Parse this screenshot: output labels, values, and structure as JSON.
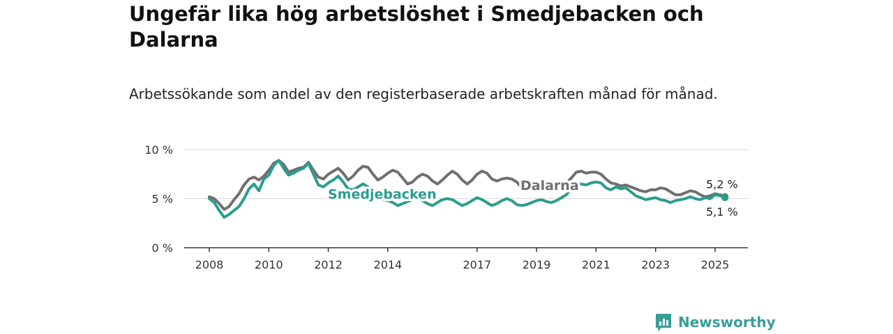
{
  "header": {
    "title": "Ungefär lika hög arbetslöshet i Smedjebacken och Dalarna",
    "subtitle": "Arbetssökande som andel av den registerbaserade arbetskraften månad för månad."
  },
  "brand": {
    "name": "Newsworthy",
    "icon": "newsworthy-logo-icon",
    "color": "#3a9d97"
  },
  "chart_data": {
    "type": "line",
    "ylim": [
      0,
      10
    ],
    "yticks": [
      {
        "value": 0,
        "label": "0 %"
      },
      {
        "value": 5,
        "label": "5 %"
      },
      {
        "value": 10,
        "label": "10 %"
      }
    ],
    "xticks": [
      "2008",
      "2010",
      "2012",
      "2014",
      "2017",
      "2019",
      "2021",
      "2023",
      "2025"
    ],
    "x_range": [
      "2008-01",
      "2025-06"
    ],
    "grid": true,
    "series": [
      {
        "name": "Dalarna",
        "color": "#6f6f6f",
        "label_value": "5,2 %",
        "points": [
          [
            "2008-01",
            5.2
          ],
          [
            "2008-03",
            5.0
          ],
          [
            "2008-05",
            4.5
          ],
          [
            "2008-07",
            3.9
          ],
          [
            "2008-09",
            4.2
          ],
          [
            "2008-11",
            4.9
          ],
          [
            "2009-01",
            5.5
          ],
          [
            "2009-03",
            6.4
          ],
          [
            "2009-05",
            7.0
          ],
          [
            "2009-07",
            7.2
          ],
          [
            "2009-09",
            6.9
          ],
          [
            "2009-11",
            7.3
          ],
          [
            "2010-01",
            7.9
          ],
          [
            "2010-03",
            8.6
          ],
          [
            "2010-05",
            8.9
          ],
          [
            "2010-07",
            8.5
          ],
          [
            "2010-09",
            7.7
          ],
          [
            "2010-11",
            7.9
          ],
          [
            "2011-01",
            8.1
          ],
          [
            "2011-03",
            8.2
          ],
          [
            "2011-05",
            8.7
          ],
          [
            "2011-07",
            7.9
          ],
          [
            "2011-09",
            7.2
          ],
          [
            "2011-11",
            7.0
          ],
          [
            "2012-01",
            7.5
          ],
          [
            "2012-03",
            7.8
          ],
          [
            "2012-05",
            8.1
          ],
          [
            "2012-07",
            7.6
          ],
          [
            "2012-09",
            6.9
          ],
          [
            "2012-11",
            7.3
          ],
          [
            "2013-01",
            7.9
          ],
          [
            "2013-03",
            8.3
          ],
          [
            "2013-05",
            8.2
          ],
          [
            "2013-07",
            7.5
          ],
          [
            "2013-09",
            6.9
          ],
          [
            "2013-11",
            7.2
          ],
          [
            "2014-01",
            7.6
          ],
          [
            "2014-03",
            7.9
          ],
          [
            "2014-05",
            7.7
          ],
          [
            "2014-07",
            7.1
          ],
          [
            "2014-09",
            6.5
          ],
          [
            "2014-11",
            6.7
          ],
          [
            "2015-01",
            7.2
          ],
          [
            "2015-03",
            7.5
          ],
          [
            "2015-05",
            7.3
          ],
          [
            "2015-07",
            6.8
          ],
          [
            "2015-09",
            6.5
          ],
          [
            "2015-11",
            6.9
          ],
          [
            "2016-01",
            7.4
          ],
          [
            "2016-03",
            7.8
          ],
          [
            "2016-05",
            7.5
          ],
          [
            "2016-07",
            6.9
          ],
          [
            "2016-09",
            6.5
          ],
          [
            "2016-11",
            6.9
          ],
          [
            "2017-01",
            7.5
          ],
          [
            "2017-03",
            7.8
          ],
          [
            "2017-05",
            7.6
          ],
          [
            "2017-07",
            7.0
          ],
          [
            "2017-09",
            6.8
          ],
          [
            "2017-11",
            7.0
          ],
          [
            "2018-01",
            7.1
          ],
          [
            "2018-03",
            7.0
          ],
          [
            "2018-05",
            6.7
          ],
          [
            "2018-07",
            6.1
          ],
          [
            "2018-09",
            6.0
          ],
          [
            "2018-11",
            6.2
          ],
          [
            "2019-01",
            6.5
          ],
          [
            "2019-03",
            6.6
          ],
          [
            "2019-05",
            6.4
          ],
          [
            "2019-07",
            6.1
          ],
          [
            "2019-09",
            6.1
          ],
          [
            "2019-11",
            6.3
          ],
          [
            "2020-01",
            6.6
          ],
          [
            "2020-03",
            7.1
          ],
          [
            "2020-05",
            7.7
          ],
          [
            "2020-07",
            7.8
          ],
          [
            "2020-09",
            7.6
          ],
          [
            "2020-11",
            7.7
          ],
          [
            "2021-01",
            7.7
          ],
          [
            "2021-03",
            7.5
          ],
          [
            "2021-05",
            7.0
          ],
          [
            "2021-07",
            6.6
          ],
          [
            "2021-09",
            6.5
          ],
          [
            "2021-11",
            6.3
          ],
          [
            "2022-01",
            6.4
          ],
          [
            "2022-03",
            6.2
          ],
          [
            "2022-05",
            6.0
          ],
          [
            "2022-07",
            5.8
          ],
          [
            "2022-09",
            5.7
          ],
          [
            "2022-11",
            5.9
          ],
          [
            "2023-01",
            5.9
          ],
          [
            "2023-03",
            6.1
          ],
          [
            "2023-05",
            6.0
          ],
          [
            "2023-07",
            5.7
          ],
          [
            "2023-09",
            5.4
          ],
          [
            "2023-11",
            5.4
          ],
          [
            "2024-01",
            5.6
          ],
          [
            "2024-03",
            5.8
          ],
          [
            "2024-05",
            5.7
          ],
          [
            "2024-07",
            5.4
          ],
          [
            "2024-09",
            5.2
          ],
          [
            "2024-11",
            5.3
          ],
          [
            "2025-01",
            5.5
          ],
          [
            "2025-03",
            5.4
          ],
          [
            "2025-05",
            5.2
          ]
        ]
      },
      {
        "name": "Smedjebacken",
        "color": "#2a9d8f",
        "label_value": "5,1 %",
        "points": [
          [
            "2008-01",
            5.0
          ],
          [
            "2008-03",
            4.6
          ],
          [
            "2008-05",
            3.8
          ],
          [
            "2008-07",
            3.1
          ],
          [
            "2008-09",
            3.4
          ],
          [
            "2008-11",
            3.8
          ],
          [
            "2009-01",
            4.2
          ],
          [
            "2009-03",
            5.0
          ],
          [
            "2009-05",
            6.0
          ],
          [
            "2009-07",
            6.5
          ],
          [
            "2009-09",
            5.8
          ],
          [
            "2009-11",
            7.0
          ],
          [
            "2010-01",
            7.4
          ],
          [
            "2010-03",
            8.4
          ],
          [
            "2010-05",
            8.9
          ],
          [
            "2010-07",
            8.1
          ],
          [
            "2010-09",
            7.4
          ],
          [
            "2010-11",
            7.6
          ],
          [
            "2011-01",
            7.9
          ],
          [
            "2011-03",
            8.1
          ],
          [
            "2011-05",
            8.6
          ],
          [
            "2011-07",
            7.5
          ],
          [
            "2011-09",
            6.4
          ],
          [
            "2011-11",
            6.2
          ],
          [
            "2012-01",
            6.6
          ],
          [
            "2012-03",
            6.9
          ],
          [
            "2012-05",
            7.3
          ],
          [
            "2012-07",
            6.7
          ],
          [
            "2012-09",
            6.0
          ],
          [
            "2012-11",
            5.9
          ],
          [
            "2013-01",
            6.2
          ],
          [
            "2013-03",
            6.5
          ],
          [
            "2013-05",
            6.2
          ],
          [
            "2013-07",
            5.5
          ],
          [
            "2013-09",
            5.0
          ],
          [
            "2013-11",
            4.9
          ],
          [
            "2014-01",
            4.8
          ],
          [
            "2014-03",
            4.6
          ],
          [
            "2014-05",
            4.3
          ],
          [
            "2014-07",
            4.5
          ],
          [
            "2014-09",
            4.7
          ],
          [
            "2014-11",
            4.9
          ],
          [
            "2015-01",
            5.0
          ],
          [
            "2015-03",
            4.8
          ],
          [
            "2015-05",
            4.5
          ],
          [
            "2015-07",
            4.3
          ],
          [
            "2015-09",
            4.6
          ],
          [
            "2015-11",
            4.9
          ],
          [
            "2016-01",
            5.0
          ],
          [
            "2016-03",
            4.9
          ],
          [
            "2016-05",
            4.6
          ],
          [
            "2016-07",
            4.3
          ],
          [
            "2016-09",
            4.5
          ],
          [
            "2016-11",
            4.8
          ],
          [
            "2017-01",
            5.1
          ],
          [
            "2017-03",
            4.9
          ],
          [
            "2017-05",
            4.6
          ],
          [
            "2017-07",
            4.3
          ],
          [
            "2017-09",
            4.5
          ],
          [
            "2017-11",
            4.8
          ],
          [
            "2018-01",
            5.0
          ],
          [
            "2018-03",
            4.8
          ],
          [
            "2018-05",
            4.4
          ],
          [
            "2018-07",
            4.3
          ],
          [
            "2018-09",
            4.4
          ],
          [
            "2018-11",
            4.6
          ],
          [
            "2019-01",
            4.8
          ],
          [
            "2019-03",
            4.9
          ],
          [
            "2019-05",
            4.7
          ],
          [
            "2019-07",
            4.6
          ],
          [
            "2019-09",
            4.8
          ],
          [
            "2019-11",
            5.1
          ],
          [
            "2020-01",
            5.4
          ],
          [
            "2020-03",
            6.0
          ],
          [
            "2020-05",
            6.4
          ],
          [
            "2020-07",
            6.5
          ],
          [
            "2020-09",
            6.4
          ],
          [
            "2020-11",
            6.6
          ],
          [
            "2021-01",
            6.7
          ],
          [
            "2021-03",
            6.6
          ],
          [
            "2021-05",
            6.1
          ],
          [
            "2021-07",
            5.9
          ],
          [
            "2021-09",
            6.2
          ],
          [
            "2021-11",
            6.0
          ],
          [
            "2022-01",
            6.1
          ],
          [
            "2022-03",
            5.7
          ],
          [
            "2022-05",
            5.3
          ],
          [
            "2022-07",
            5.1
          ],
          [
            "2022-09",
            4.9
          ],
          [
            "2022-11",
            5.0
          ],
          [
            "2023-01",
            5.1
          ],
          [
            "2023-03",
            4.9
          ],
          [
            "2023-05",
            4.8
          ],
          [
            "2023-07",
            4.6
          ],
          [
            "2023-09",
            4.8
          ],
          [
            "2023-11",
            4.9
          ],
          [
            "2024-01",
            5.0
          ],
          [
            "2024-03",
            5.2
          ],
          [
            "2024-05",
            5.0
          ],
          [
            "2024-07",
            4.9
          ],
          [
            "2024-09",
            5.1
          ],
          [
            "2024-11",
            5.0
          ],
          [
            "2025-01",
            5.4
          ],
          [
            "2025-03",
            5.3
          ],
          [
            "2025-05",
            5.1
          ]
        ]
      }
    ]
  }
}
